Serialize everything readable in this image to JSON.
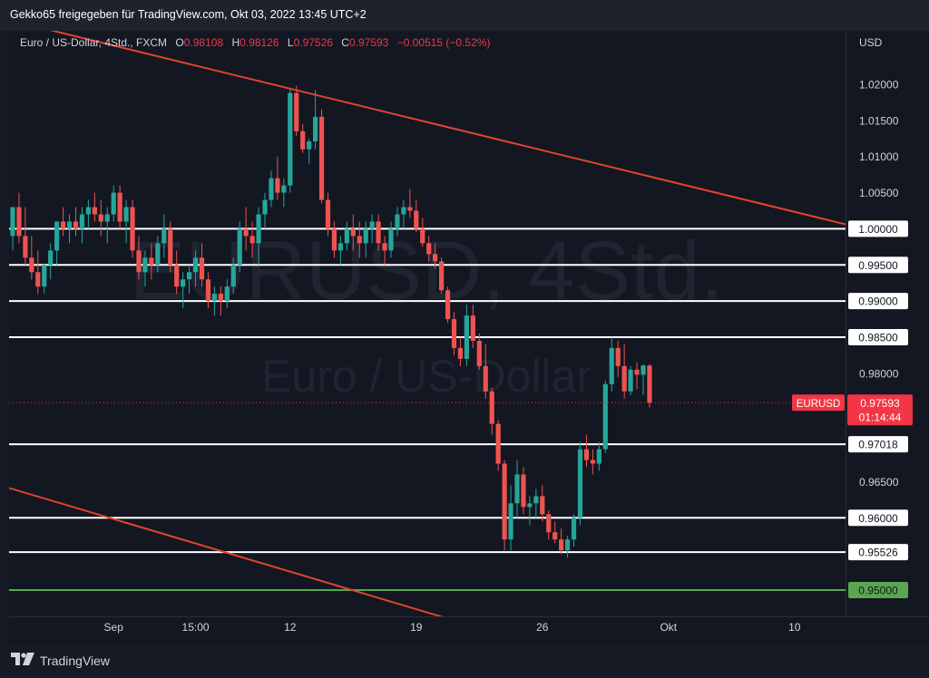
{
  "header": {
    "publish_line": "Gekko65 freigegeben für TradingView.com, Okt 03, 2022 13:45 UTC+2"
  },
  "legend": {
    "symbol": "Euro / US-Dollar, 4Std., FXCM",
    "o_label": "O",
    "o_value": "0.98108",
    "h_label": "H",
    "h_value": "0.98126",
    "l_label": "L",
    "l_value": "0.97526",
    "c_label": "C",
    "c_value": "0.97593",
    "change": "−0.00515 (−0.52%)"
  },
  "axis": {
    "currency": "USD"
  },
  "watermark": {
    "ticker": "EURUSD, 4Std.",
    "name": "Euro / US-Dollar"
  },
  "price_tag": {
    "symbol": "EURUSD",
    "price": "0.97593",
    "countdown": "01:14:44"
  },
  "footer": {
    "brand": "TradingView"
  },
  "colors": {
    "up": "#26a69a",
    "down": "#ef5350",
    "trend": "#e0442f",
    "support": "#ffffff",
    "green_level": "#5aa64f",
    "price_tag": "#f23645"
  },
  "chart_data": {
    "type": "candlestick",
    "title": "Euro / US-Dollar, 4Std., FXCM",
    "y_axis": {
      "unit": "USD",
      "range": [
        0.9475,
        1.0285
      ],
      "ticks": [
        "1.02000",
        "1.01500",
        "1.01000",
        "1.00500",
        "1.00000",
        "0.99500",
        "0.99000",
        "0.98500",
        "0.98000",
        "0.97593",
        "0.97018",
        "0.96500",
        "0.96000",
        "0.95526",
        "0.95000"
      ]
    },
    "x_ticks": [
      {
        "label": "Sep",
        "index": 16
      },
      {
        "label": "15:00",
        "index": 29
      },
      {
        "label": "12",
        "index": 44
      },
      {
        "label": "19",
        "index": 64
      },
      {
        "label": "26",
        "index": 84
      },
      {
        "label": "Okt",
        "index": 104
      },
      {
        "label": "10",
        "index": 124
      }
    ],
    "horizontal_levels": [
      {
        "value": 1.0,
        "label": "1.00000",
        "color": "white"
      },
      {
        "value": 0.995,
        "label": "0.99500",
        "color": "white"
      },
      {
        "value": 0.99,
        "label": "0.99000",
        "color": "white"
      },
      {
        "value": 0.985,
        "label": "0.98500",
        "color": "white"
      },
      {
        "value": 0.97018,
        "label": "0.97018",
        "color": "white"
      },
      {
        "value": 0.96,
        "label": "0.96000",
        "color": "white"
      },
      {
        "value": 0.95526,
        "label": "0.95526",
        "color": "white"
      },
      {
        "value": 0.95,
        "label": "0.95000",
        "color": "green"
      }
    ],
    "trendlines": [
      {
        "name": "upper",
        "x1": -2,
        "y1": 1.0292,
        "x2": 135,
        "y2": 1.0
      },
      {
        "name": "lower",
        "x1": -2,
        "y1": 0.9645,
        "x2": 75,
        "y2": 0.9445
      }
    ],
    "last_price": 0.97593,
    "ohlc": [
      [
        0.999,
        1.003,
        0.997,
        1.003
      ],
      [
        1.003,
        1.005,
        0.998,
        0.999
      ],
      [
        0.999,
        1.003,
        0.995,
        0.996
      ],
      [
        0.996,
        0.999,
        0.993,
        0.994
      ],
      [
        0.994,
        0.997,
        0.991,
        0.992
      ],
      [
        0.992,
        0.995,
        0.991,
        0.995
      ],
      [
        0.995,
        0.998,
        0.993,
        0.997
      ],
      [
        0.997,
        1.001,
        0.995,
        1.001
      ],
      [
        1.001,
        1.003,
        0.999,
        1.0
      ],
      [
        1.0,
        1.002,
        0.998,
        1.001
      ],
      [
        1.001,
        1.003,
        0.999,
        1.0
      ],
      [
        1.0,
        1.003,
        0.998,
        1.002
      ],
      [
        1.002,
        1.004,
        1.0,
        1.003
      ],
      [
        1.003,
        1.005,
        1.001,
        1.002
      ],
      [
        1.002,
        1.004,
        0.999,
        1.001
      ],
      [
        1.001,
        1.003,
        0.998,
        1.002
      ],
      [
        1.002,
        1.006,
        1.001,
        1.005
      ],
      [
        1.005,
        1.006,
        1.0,
        1.001
      ],
      [
        1.001,
        1.004,
        0.998,
        1.003
      ],
      [
        1.003,
        1.004,
        0.996,
        0.997
      ],
      [
        0.997,
        0.999,
        0.993,
        0.994
      ],
      [
        0.994,
        0.997,
        0.992,
        0.996
      ],
      [
        0.996,
        0.998,
        0.993,
        0.995
      ],
      [
        0.995,
        0.999,
        0.994,
        0.998
      ],
      [
        0.998,
        1.002,
        0.996,
        1.0
      ],
      [
        1.0,
        1.001,
        0.994,
        0.995
      ],
      [
        0.995,
        0.997,
        0.991,
        0.992
      ],
      [
        0.992,
        0.994,
        0.989,
        0.993
      ],
      [
        0.993,
        0.995,
        0.991,
        0.994
      ],
      [
        0.994,
        0.997,
        0.992,
        0.996
      ],
      [
        0.996,
        0.998,
        0.992,
        0.993
      ],
      [
        0.993,
        0.994,
        0.989,
        0.99
      ],
      [
        0.99,
        0.992,
        0.988,
        0.991
      ],
      [
        0.991,
        0.992,
        0.988,
        0.99
      ],
      [
        0.99,
        0.993,
        0.989,
        0.992
      ],
      [
        0.992,
        0.996,
        0.991,
        0.995
      ],
      [
        0.995,
        1.001,
        0.994,
        1.0
      ],
      [
        1.0,
        1.003,
        0.997,
        0.999
      ],
      [
        0.999,
        1.001,
        0.996,
        0.998
      ],
      [
        0.998,
        1.003,
        0.995,
        1.002
      ],
      [
        1.002,
        1.005,
        1.0,
        1.004
      ],
      [
        1.004,
        1.008,
        1.003,
        1.007
      ],
      [
        1.007,
        1.01,
        1.004,
        1.005
      ],
      [
        1.005,
        1.007,
        1.003,
        1.006
      ],
      [
        1.006,
        1.0195,
        1.005,
        1.0188
      ],
      [
        1.0188,
        1.0198,
        1.0128,
        1.0135
      ],
      [
        1.0135,
        1.0145,
        1.0105,
        1.011
      ],
      [
        1.011,
        1.0125,
        1.009,
        1.0121
      ],
      [
        1.0121,
        1.0192,
        1.011,
        1.0155
      ],
      [
        1.0155,
        1.0165,
        1.0035,
        1.004
      ],
      [
        1.004,
        1.005,
        0.999,
        1.0
      ],
      [
        1.0,
        1.001,
        0.996,
        0.997
      ],
      [
        0.997,
        0.999,
        0.995,
        0.998
      ],
      [
        0.998,
        1.001,
        0.997,
        1.0
      ],
      [
        1.0,
        1.002,
        0.997,
        0.999
      ],
      [
        0.999,
        1.001,
        0.996,
        0.998
      ],
      [
        0.998,
        1.001,
        0.996,
        1.0
      ],
      [
        1.0,
        1.002,
        0.998,
        1.001
      ],
      [
        1.001,
        1.002,
        0.997,
        0.998
      ],
      [
        0.998,
        0.999,
        0.995,
        0.997
      ],
      [
        0.997,
        1.001,
        0.996,
        1.0
      ],
      [
        1.0,
        1.003,
        0.999,
        1.002
      ],
      [
        1.002,
        1.004,
        1.0,
        1.003
      ],
      [
        1.003,
        1.0055,
        1.0015,
        1.0025
      ],
      [
        1.0025,
        1.004,
        0.9995,
        1.0
      ],
      [
        1.0,
        1.0015,
        0.9975,
        0.998
      ],
      [
        0.998,
        0.999,
        0.9955,
        0.9965
      ],
      [
        0.9965,
        0.998,
        0.9945,
        0.9955
      ],
      [
        0.9955,
        0.996,
        0.991,
        0.9915
      ],
      [
        0.9915,
        0.992,
        0.987,
        0.9875
      ],
      [
        0.9875,
        0.9885,
        0.9825,
        0.9835
      ],
      [
        0.9835,
        0.985,
        0.981,
        0.982
      ],
      [
        0.982,
        0.9895,
        0.981,
        0.988
      ],
      [
        0.988,
        0.9895,
        0.9835,
        0.9845
      ],
      [
        0.9845,
        0.9855,
        0.9805,
        0.981
      ],
      [
        0.981,
        0.984,
        0.9765,
        0.9775
      ],
      [
        0.9775,
        0.978,
        0.9715,
        0.973
      ],
      [
        0.973,
        0.9735,
        0.9665,
        0.9675
      ],
      [
        0.9675,
        0.968,
        0.9555,
        0.957
      ],
      [
        0.957,
        0.9645,
        0.9555,
        0.962
      ],
      [
        0.962,
        0.968,
        0.96,
        0.966
      ],
      [
        0.966,
        0.967,
        0.9605,
        0.9615
      ],
      [
        0.9615,
        0.963,
        0.959,
        0.962
      ],
      [
        0.962,
        0.964,
        0.96,
        0.963
      ],
      [
        0.963,
        0.9645,
        0.9595,
        0.9605
      ],
      [
        0.9605,
        0.961,
        0.957,
        0.958
      ],
      [
        0.958,
        0.9595,
        0.9565,
        0.957
      ],
      [
        0.957,
        0.9585,
        0.955,
        0.9555
      ],
      [
        0.9555,
        0.9575,
        0.9545,
        0.957
      ],
      [
        0.957,
        0.9605,
        0.956,
        0.96
      ],
      [
        0.96,
        0.9705,
        0.959,
        0.9695
      ],
      [
        0.9695,
        0.9715,
        0.967,
        0.968
      ],
      [
        0.968,
        0.9695,
        0.966,
        0.9675
      ],
      [
        0.9675,
        0.9705,
        0.9665,
        0.9695
      ],
      [
        0.9695,
        0.979,
        0.969,
        0.9785
      ],
      [
        0.9785,
        0.985,
        0.9775,
        0.9835
      ],
      [
        0.9835,
        0.9845,
        0.9795,
        0.981
      ],
      [
        0.981,
        0.984,
        0.9765,
        0.9775
      ],
      [
        0.9775,
        0.981,
        0.977,
        0.9805
      ],
      [
        0.9805,
        0.9815,
        0.9778,
        0.9798
      ],
      [
        0.9798,
        0.9812,
        0.977,
        0.9811
      ],
      [
        0.98108,
        0.98126,
        0.97526,
        0.97593
      ]
    ]
  }
}
